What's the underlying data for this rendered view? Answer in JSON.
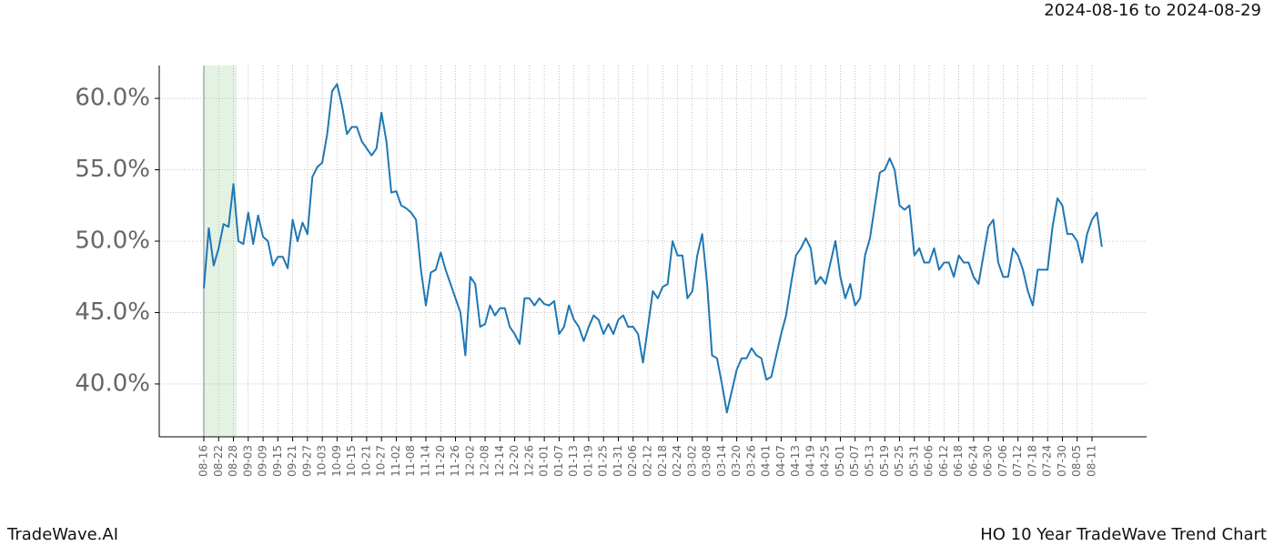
{
  "chart_data": {
    "type": "line",
    "title": "2024-08-16 to 2024-08-29",
    "categories": [
      "08-16",
      null,
      null,
      "08-22",
      null,
      null,
      "08-28",
      null,
      null,
      "09-03",
      null,
      null,
      "09-09",
      null,
      null,
      "09-15",
      null,
      null,
      "09-21",
      null,
      null,
      "09-27",
      null,
      null,
      "10-03",
      null,
      null,
      "10-09",
      null,
      null,
      "10-15",
      null,
      null,
      "10-21",
      null,
      null,
      "10-27",
      null,
      null,
      "11-02",
      null,
      null,
      "11-08",
      null,
      null,
      "11-14",
      null,
      null,
      "11-20",
      null,
      null,
      "11-26",
      null,
      null,
      "12-02",
      null,
      null,
      "12-08",
      null,
      null,
      "12-14",
      null,
      null,
      "12-20",
      null,
      null,
      "12-26",
      null,
      null,
      "01-01",
      null,
      null,
      "01-07",
      null,
      null,
      "01-13",
      null,
      null,
      "01-19",
      null,
      null,
      "01-25",
      null,
      null,
      "01-31",
      null,
      null,
      "02-06",
      null,
      null,
      "02-12",
      null,
      null,
      "02-18",
      null,
      null,
      "02-24",
      null,
      null,
      "03-02",
      null,
      null,
      "03-08",
      null,
      null,
      "03-14",
      null,
      null,
      "03-20",
      null,
      null,
      "03-26",
      null,
      null,
      "04-01",
      null,
      null,
      "04-07",
      null,
      null,
      "04-13",
      null,
      null,
      "04-19",
      null,
      null,
      "04-25",
      null,
      null,
      "05-01",
      null,
      null,
      "05-07",
      null,
      null,
      "05-13",
      null,
      null,
      "05-19",
      null,
      null,
      "05-25",
      null,
      null,
      "05-31",
      null,
      null,
      "06-06",
      null,
      null,
      "06-12",
      null,
      null,
      "06-18",
      null,
      null,
      "06-24",
      null,
      null,
      "06-30",
      null,
      null,
      "07-06",
      null,
      null,
      "07-12",
      null,
      null,
      "07-18",
      null,
      null,
      "07-24",
      null,
      null,
      "07-30",
      null,
      null,
      "08-05",
      null,
      null,
      "08-11",
      null,
      null
    ],
    "values": [
      46.7,
      50.9,
      48.3,
      49.5,
      51.2,
      51.0,
      54.0,
      50.0,
      49.8,
      52.0,
      49.8,
      51.8,
      50.3,
      50.0,
      48.3,
      48.9,
      48.9,
      48.1,
      51.5,
      50.0,
      51.3,
      50.5,
      54.5,
      55.2,
      55.5,
      57.5,
      60.5,
      61.0,
      59.5,
      57.5,
      58.0,
      58.0,
      57.0,
      56.5,
      56.0,
      56.5,
      59.0,
      57.0,
      53.4,
      53.5,
      52.5,
      52.3,
      52.0,
      51.5,
      48.0,
      45.5,
      47.8,
      48.0,
      49.2,
      48.0,
      47.0,
      46.0,
      45.0,
      42.0,
      47.5,
      47.0,
      44.0,
      44.2,
      45.5,
      44.8,
      45.3,
      45.3,
      44.0,
      43.5,
      42.8,
      46.0,
      46.0,
      45.5,
      46.0,
      45.6,
      45.5,
      45.8,
      43.5,
      44.0,
      45.5,
      44.5,
      44.0,
      43.0,
      44.0,
      44.8,
      44.5,
      43.5,
      44.2,
      43.5,
      44.5,
      44.8,
      44.0,
      44.0,
      43.5,
      41.5,
      44.0,
      46.5,
      46.0,
      46.8,
      47.0,
      50.0,
      49.0,
      49.0,
      46.0,
      46.5,
      49.0,
      50.5,
      47.0,
      42.0,
      41.8,
      40.0,
      38.0,
      39.5,
      41.0,
      41.8,
      41.8,
      42.5,
      42.0,
      41.8,
      40.3,
      40.5,
      42.0,
      43.5,
      44.8,
      47.0,
      49.0,
      49.5,
      50.2,
      49.5,
      47.0,
      47.5,
      47.0,
      48.5,
      50.0,
      47.5,
      46.0,
      47.0,
      45.5,
      46.0,
      49.0,
      50.2,
      52.5,
      54.8,
      55.0,
      55.8,
      55.0,
      52.5,
      52.2,
      52.5,
      49.0,
      49.5,
      48.5,
      48.5,
      49.5,
      48.0,
      48.5,
      48.5,
      47.5,
      49.0,
      48.5,
      48.5,
      47.5,
      47.0,
      49.0,
      51.0,
      51.5,
      48.5,
      47.5,
      47.5,
      49.5,
      49.0,
      48.0,
      46.5,
      45.5,
      48.0,
      48.0,
      48.0,
      51.0,
      53.0,
      52.5,
      50.5,
      50.5,
      50.0,
      48.5,
      50.5,
      51.5,
      52.0,
      49.6
    ],
    "color": "#1f77b4",
    "ylim": [
      36.3,
      62.3
    ],
    "yticks": [
      {
        "value": 40,
        "label": "40.0%"
      },
      {
        "value": 45,
        "label": "45.0%"
      },
      {
        "value": 50,
        "label": "50.0%"
      },
      {
        "value": 55,
        "label": "55.0%"
      },
      {
        "value": 60,
        "label": "60.0%"
      }
    ],
    "grid": true
  },
  "footer": {
    "left": "TradeWave.AI",
    "right": "HO 10 Year TradeWave Trend Chart"
  }
}
